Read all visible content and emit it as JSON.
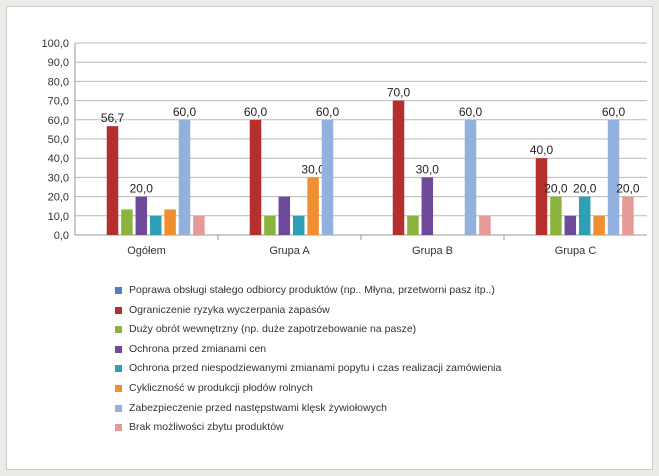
{
  "chart_data": {
    "type": "bar",
    "ylim": [
      0,
      100
    ],
    "yticks": [
      "0,0",
      "10,0",
      "20,0",
      "30,0",
      "40,0",
      "50,0",
      "60,0",
      "70,0",
      "80,0",
      "90,0",
      "100,0"
    ],
    "grid": true,
    "legend_position": "bottom",
    "categories": [
      "Ogółem",
      "Grupa A",
      "Grupa B",
      "Grupa C"
    ],
    "series": [
      {
        "name": "Poprawa obsługi stałego odbiorcy produktów (np.. Młyna, przetworni pasz itp..)",
        "color": "#4f81bd",
        "values": [
          0,
          0,
          0,
          0
        ],
        "labels": [
          "",
          "",
          "",
          ""
        ]
      },
      {
        "name": "Ograniczenie ryzyka wyczerpania zapasów",
        "color": "#b5302d",
        "values": [
          56.7,
          60,
          70,
          40
        ],
        "labels": [
          "56,7",
          "60,0",
          "70,0",
          "40,0"
        ]
      },
      {
        "name": "Duży obrót wewnętrzny (np. duże zapotrzebowanie na pasze)",
        "color": "#8db33f",
        "values": [
          13.3,
          10,
          10,
          20
        ],
        "labels": [
          "",
          "",
          "",
          "20,0"
        ]
      },
      {
        "name": "Ochrona przed zmianami cen",
        "color": "#6d4a9a",
        "values": [
          20,
          20,
          30,
          10
        ],
        "labels": [
          "20,0",
          "",
          "30,0",
          ""
        ]
      },
      {
        "name": "Ochrona przed niespodziewanymi zmianami popytu i czas realizacji zamówienia",
        "color": "#2f9fb5",
        "values": [
          10,
          10,
          0,
          20
        ],
        "labels": [
          "",
          "",
          "",
          "20,0"
        ]
      },
      {
        "name": "Cykliczność w produkcji płodów rolnych",
        "color": "#f08f30",
        "values": [
          13.3,
          30,
          0,
          10
        ],
        "labels": [
          "",
          "30,0",
          "",
          ""
        ]
      },
      {
        "name": "Zabezpieczenie przed następstwami klęsk żywiołowych",
        "color": "#93b1de",
        "values": [
          60,
          60,
          60,
          60
        ],
        "labels": [
          "60,0",
          "60,0",
          "60,0",
          "60,0"
        ]
      },
      {
        "name": "Brak możliwości zbytu produktów",
        "color": "#e49b98",
        "values": [
          10,
          0,
          10,
          20
        ],
        "labels": [
          "",
          "",
          "",
          "20,0"
        ]
      }
    ]
  }
}
